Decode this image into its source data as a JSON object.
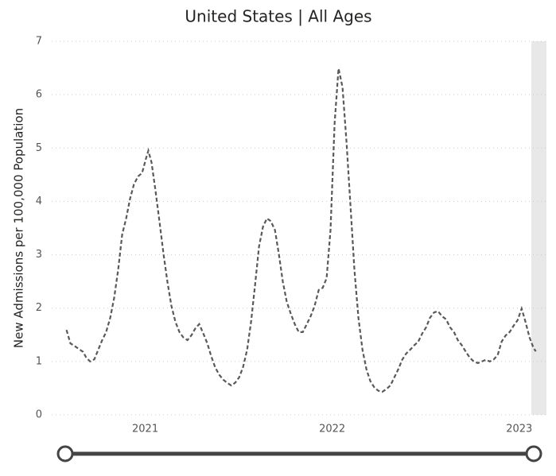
{
  "chart_data": {
    "type": "line",
    "title": "United States | All Ages",
    "ylabel": "New Admissions per 100,000 Population",
    "xlim": [
      2020.5,
      2023.15
    ],
    "xticks": [
      2021,
      2022,
      2023
    ],
    "ylim": [
      0,
      7
    ],
    "yticks": [
      0,
      1,
      2,
      3,
      4,
      5,
      6,
      7
    ],
    "grid": true,
    "x": [
      2020.579,
      2020.6,
      2020.63,
      2020.651,
      2020.668,
      2020.685,
      2020.706,
      2020.728,
      2020.749,
      2020.77,
      2020.791,
      2020.813,
      2020.834,
      2020.855,
      2020.877,
      2020.898,
      2020.919,
      2020.94,
      2020.962,
      2020.983,
      2021.004,
      2021.017,
      2021.034,
      2021.055,
      2021.077,
      2021.098,
      2021.119,
      2021.14,
      2021.162,
      2021.183,
      2021.204,
      2021.226,
      2021.247,
      2021.268,
      2021.289,
      2021.311,
      2021.332,
      2021.353,
      2021.374,
      2021.396,
      2021.417,
      2021.438,
      2021.46,
      2021.481,
      2021.502,
      2021.523,
      2021.545,
      2021.566,
      2021.587,
      2021.609,
      2021.63,
      2021.651,
      2021.672,
      2021.694,
      2021.715,
      2021.736,
      2021.757,
      2021.779,
      2021.8,
      2021.821,
      2021.843,
      2021.864,
      2021.885,
      2021.906,
      2021.928,
      2021.949,
      2021.97,
      2021.991,
      2022.013,
      2022.034,
      2022.055,
      2022.077,
      2022.098,
      2022.119,
      2022.14,
      2022.162,
      2022.183,
      2022.204,
      2022.226,
      2022.247,
      2022.268,
      2022.289,
      2022.311,
      2022.332,
      2022.353,
      2022.374,
      2022.396,
      2022.417,
      2022.438,
      2022.46,
      2022.481,
      2022.502,
      2022.523,
      2022.545,
      2022.566,
      2022.587,
      2022.609,
      2022.63,
      2022.651,
      2022.672,
      2022.694,
      2022.715,
      2022.736,
      2022.757,
      2022.779,
      2022.8,
      2022.821,
      2022.843,
      2022.864,
      2022.885,
      2022.906,
      2022.928,
      2022.949,
      2022.97,
      2022.991,
      2023.013,
      2023.034,
      2023.055,
      2023.077,
      2023.089
    ],
    "series": [
      {
        "name": "United States",
        "color": "#595959",
        "values": [
          1.59,
          1.34,
          1.27,
          1.22,
          1.18,
          1.07,
          1.0,
          1.04,
          1.22,
          1.4,
          1.55,
          1.82,
          2.19,
          2.71,
          3.38,
          3.68,
          4.05,
          4.32,
          4.47,
          4.53,
          4.8,
          4.95,
          4.73,
          4.2,
          3.61,
          3.01,
          2.49,
          2.04,
          1.74,
          1.55,
          1.45,
          1.4,
          1.49,
          1.62,
          1.7,
          1.52,
          1.34,
          1.1,
          0.89,
          0.75,
          0.66,
          0.6,
          0.55,
          0.6,
          0.7,
          0.89,
          1.22,
          1.74,
          2.41,
          3.16,
          3.53,
          3.68,
          3.63,
          3.46,
          3.01,
          2.49,
          2.12,
          1.89,
          1.7,
          1.55,
          1.55,
          1.7,
          1.85,
          2.04,
          2.34,
          2.38,
          2.56,
          3.46,
          5.47,
          6.49,
          6.14,
          5.1,
          3.9,
          2.71,
          1.82,
          1.22,
          0.85,
          0.63,
          0.51,
          0.45,
          0.43,
          0.48,
          0.55,
          0.7,
          0.85,
          1.03,
          1.15,
          1.22,
          1.3,
          1.37,
          1.52,
          1.64,
          1.82,
          1.92,
          1.94,
          1.85,
          1.79,
          1.64,
          1.55,
          1.4,
          1.3,
          1.18,
          1.07,
          1.0,
          0.97,
          1.0,
          1.03,
          1.0,
          1.04,
          1.12,
          1.37,
          1.49,
          1.55,
          1.67,
          1.77,
          1.99,
          1.74,
          1.45,
          1.25,
          1.19
        ]
      }
    ]
  }
}
